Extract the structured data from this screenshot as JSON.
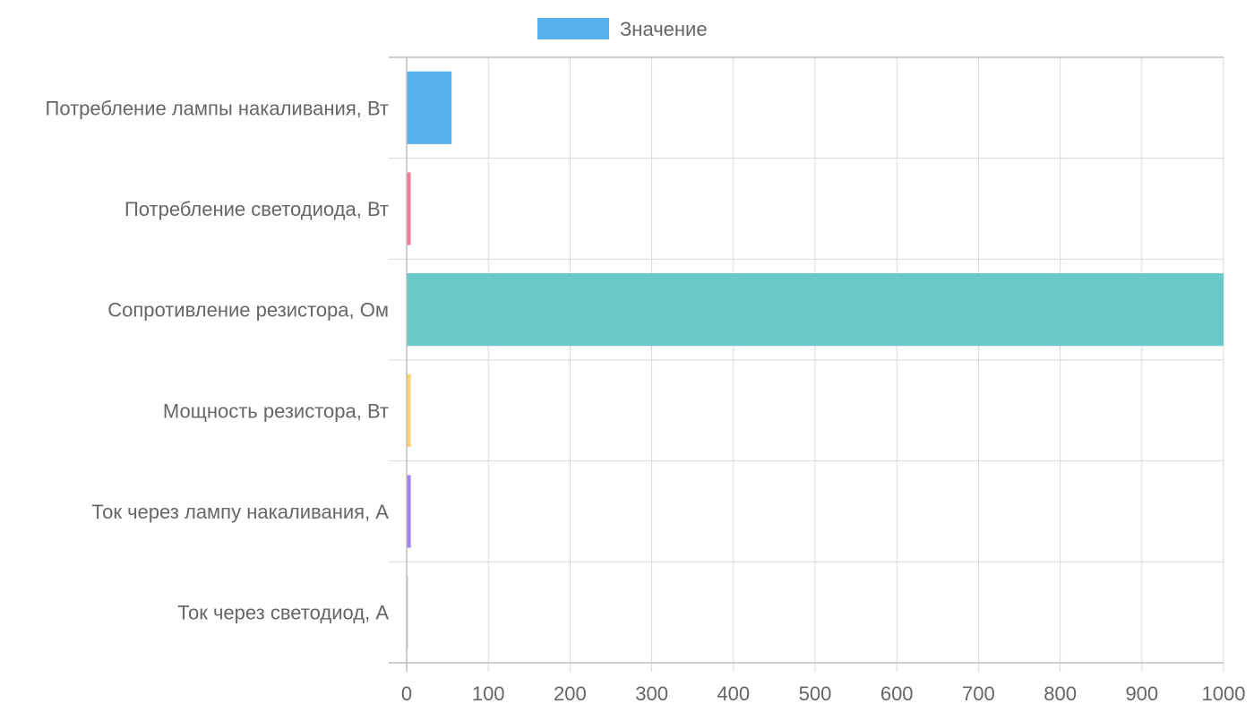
{
  "chart_data": {
    "type": "bar",
    "orientation": "horizontal",
    "categories": [
      "Потребление лампы накаливания, Вт",
      "Потребление светодиода, Вт",
      "Сопротивление резистора, Ом",
      "Мощность резистора, Вт",
      "Ток через лампу накаливания, А",
      "Ток через светодиод, А"
    ],
    "series": [
      {
        "name": "Значение",
        "values": [
          55,
          5,
          1000,
          5,
          5,
          0.5
        ],
        "colors": [
          "#56b0ee",
          "#f47a99",
          "#68c9c8",
          "#fdd16f",
          "#a27ff2",
          "#c9cbcf"
        ]
      }
    ],
    "legend": {
      "position": "top-center",
      "label": "Значение",
      "color": "#56b0ee"
    },
    "xlim": [
      0,
      1000
    ],
    "xticks": [
      0,
      100,
      200,
      300,
      400,
      500,
      600,
      700,
      800,
      900,
      1000
    ],
    "xtick_labels": [
      "0",
      "100",
      "200",
      "300",
      "400",
      "500",
      "600",
      "700",
      "800",
      "900",
      "1000"
    ],
    "grid": true,
    "title": "",
    "xlabel": "",
    "ylabel": ""
  }
}
